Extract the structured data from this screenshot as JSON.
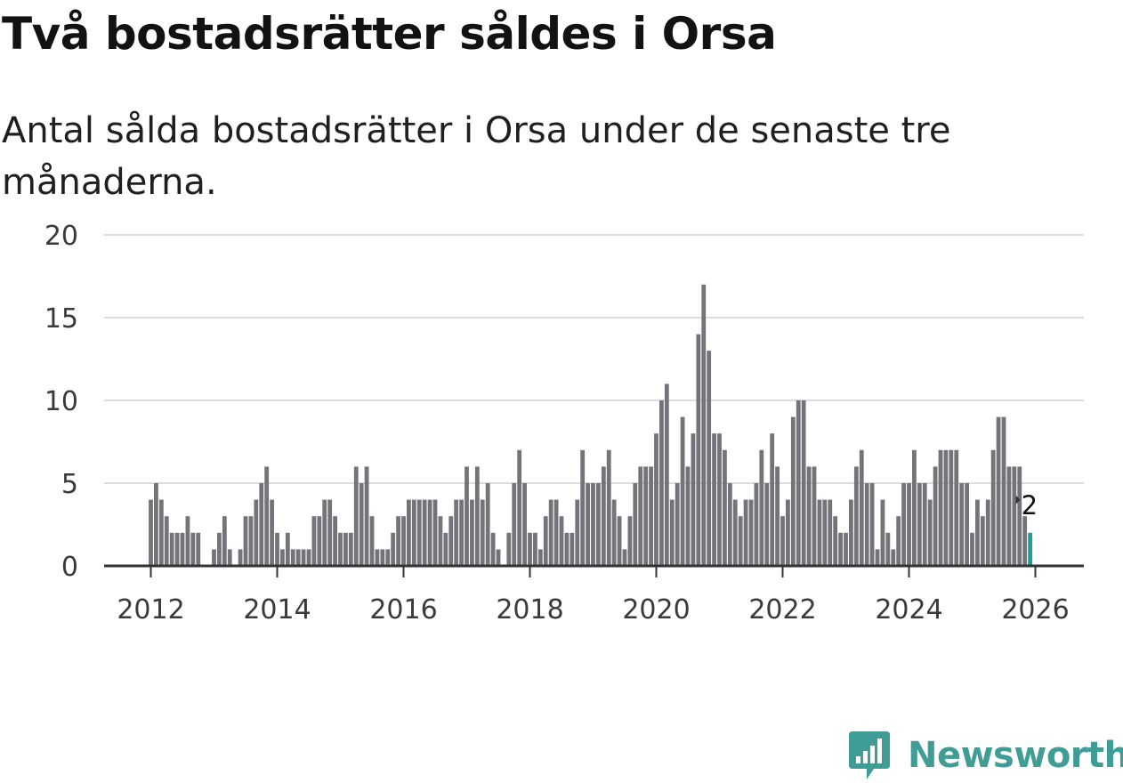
{
  "title": "Två bostadsrätter såldes i Orsa",
  "subtitle": "Antal sålda bostadsrätter i Orsa under de senaste tre månaderna.",
  "brand": {
    "name": "Newsworthy",
    "color": "#3f9d95"
  },
  "colors": {
    "bar": "#75737a",
    "highlight": "#1c9e96",
    "grid": "#dcdcdc",
    "axis": "#333333"
  },
  "chart_data": {
    "type": "bar",
    "title": "Två bostadsrätter såldes i Orsa",
    "xlabel": "",
    "ylabel": "",
    "ylim": [
      0,
      20
    ],
    "yticks": [
      0,
      5,
      10,
      15,
      20
    ],
    "xticks": [
      "2012",
      "2014",
      "2016",
      "2018",
      "2020",
      "2022",
      "2024",
      "2026"
    ],
    "x_start": "2012-01",
    "x_end": "2025-12",
    "annotation": {
      "label": "2",
      "index": 167
    },
    "values": [
      4,
      5,
      4,
      3,
      2,
      2,
      2,
      3,
      2,
      2,
      0,
      0,
      1,
      2,
      3,
      1,
      0,
      1,
      3,
      3,
      4,
      5,
      6,
      4,
      2,
      1,
      2,
      1,
      1,
      1,
      1,
      3,
      3,
      4,
      4,
      3,
      2,
      2,
      2,
      6,
      5,
      6,
      3,
      1,
      1,
      1,
      2,
      3,
      3,
      4,
      4,
      4,
      4,
      4,
      4,
      3,
      2,
      3,
      4,
      4,
      6,
      4,
      6,
      4,
      5,
      2,
      1,
      0,
      2,
      5,
      7,
      5,
      2,
      2,
      1,
      3,
      4,
      4,
      3,
      2,
      2,
      4,
      7,
      5,
      5,
      5,
      6,
      7,
      4,
      3,
      1,
      3,
      5,
      6,
      6,
      6,
      8,
      10,
      11,
      4,
      5,
      9,
      6,
      8,
      14,
      17,
      13,
      8,
      8,
      7,
      5,
      4,
      3,
      4,
      4,
      5,
      7,
      5,
      8,
      6,
      3,
      4,
      9,
      10,
      10,
      6,
      6,
      4,
      4,
      4,
      3,
      2,
      2,
      4,
      6,
      7,
      5,
      5,
      1,
      4,
      2,
      1,
      3,
      5,
      5,
      7,
      5,
      5,
      4,
      6,
      7,
      7,
      7,
      7,
      5,
      5,
      2,
      4,
      3,
      4,
      7,
      9,
      9,
      6,
      6,
      6,
      3,
      2
    ]
  }
}
